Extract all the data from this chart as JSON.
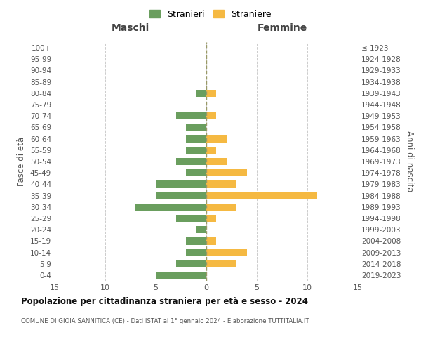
{
  "age_groups": [
    "0-4",
    "5-9",
    "10-14",
    "15-19",
    "20-24",
    "25-29",
    "30-34",
    "35-39",
    "40-44",
    "45-49",
    "50-54",
    "55-59",
    "60-64",
    "65-69",
    "70-74",
    "75-79",
    "80-84",
    "85-89",
    "90-94",
    "95-99",
    "100+"
  ],
  "birth_years": [
    "2019-2023",
    "2014-2018",
    "2009-2013",
    "2004-2008",
    "1999-2003",
    "1994-1998",
    "1989-1993",
    "1984-1988",
    "1979-1983",
    "1974-1978",
    "1969-1973",
    "1964-1968",
    "1959-1963",
    "1954-1958",
    "1949-1953",
    "1944-1948",
    "1939-1943",
    "1934-1938",
    "1929-1933",
    "1924-1928",
    "≤ 1923"
  ],
  "males": [
    5,
    3,
    2,
    2,
    1,
    3,
    7,
    5,
    5,
    2,
    3,
    2,
    2,
    2,
    3,
    0,
    1,
    0,
    0,
    0,
    0
  ],
  "females": [
    0,
    3,
    4,
    1,
    0,
    1,
    3,
    11,
    3,
    4,
    2,
    1,
    2,
    0,
    1,
    0,
    1,
    0,
    0,
    0,
    0
  ],
  "male_color": "#6a9e5e",
  "female_color": "#f5b942",
  "title": "Popolazione per cittadinanza straniera per età e sesso - 2024",
  "subtitle": "COMUNE DI GIOIA SANNITICA (CE) - Dati ISTAT al 1° gennaio 2024 - Elaborazione TUTTITALIA.IT",
  "xlabel_left": "Maschi",
  "xlabel_right": "Femmine",
  "ylabel_left": "Fasce di età",
  "ylabel_right": "Anni di nascita",
  "legend_male": "Stranieri",
  "legend_female": "Straniere",
  "xlim": 15,
  "background_color": "#ffffff",
  "grid_color": "#cccccc"
}
